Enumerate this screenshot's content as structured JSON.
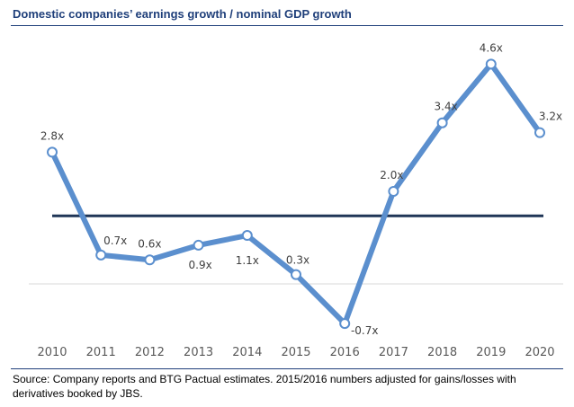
{
  "header": {
    "title": "Domestic companies’ earnings growth / nominal GDP growth"
  },
  "footer": {
    "source": "Source: Company reports and BTG Pactual estimates. 2015/2016 numbers adjusted for gains/losses with derivatives booked by JBS."
  },
  "chart_data": {
    "type": "line",
    "title": "Domestic companies’ earnings growth / nominal GDP growth",
    "xlabel": "",
    "ylabel": "",
    "categories": [
      "2010",
      "2011",
      "2012",
      "2013",
      "2014",
      "2015",
      "2016",
      "2017",
      "2018",
      "2019",
      "2020"
    ],
    "series": [
      {
        "values": [
          2.8,
          0.7,
          0.6,
          0.9,
          1.1,
          0.3,
          -0.7,
          2.0,
          3.4,
          4.6,
          3.2
        ],
        "labels": [
          "2.8x",
          "0.7x",
          "0.6x",
          "0.9x",
          "1.1x",
          "0.3x",
          "-0.7x",
          "2.0x",
          "3.4x",
          "4.6x",
          "3.2x"
        ],
        "color": "#5b8fce"
      }
    ],
    "reference_line": {
      "value": 1.5,
      "color": "#1f3556"
    },
    "ylim": [
      -0.9,
      4.9
    ],
    "grid": false,
    "legend": "none",
    "colors": {
      "line": "#5b8fce",
      "reference": "#1f3556",
      "title": "#1f3f7a",
      "axis": "#d9d9d9",
      "tick_text": "#595959"
    }
  }
}
